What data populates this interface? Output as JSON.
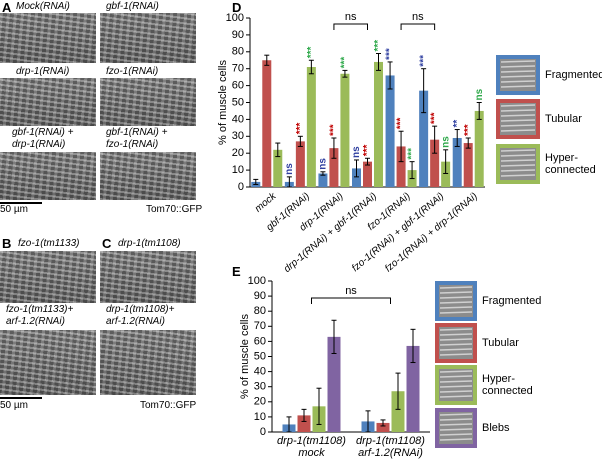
{
  "panels": [
    {
      "letter": "A",
      "captions": [
        "Mock(RNAi)",
        "gbf-1(RNAi)",
        "drp-1(RNAi)",
        "fzo-1(RNAi)",
        "gbf-1(RNAi) +\ndrp-1(RNAi)",
        "gbf-1(RNAi) +\nfzo-1(RNAi)"
      ],
      "scale_bar": "50 µm",
      "marker": "Tom70::GFP"
    },
    {
      "letter": "B",
      "captions": [
        "fzo-1(tm1133)",
        "fzo-1(tm1133)+\narf-1.2(RNAi)"
      ],
      "scale_bar": "50 µm"
    },
    {
      "letter": "C",
      "captions": [
        "drp-1(tm1108)",
        "drp-1(tm1108)+\narf-1.2(RNAi)"
      ],
      "marker": "Tom70::GFP"
    }
  ],
  "chart_data": [
    {
      "type": "bar",
      "label": "D",
      "ylabel": "% of muscle cells",
      "categories": [
        "mock",
        "gbf-1(RNAi)",
        "drp-1(RNAi)",
        "drp-1(RNAi) + gbf-1(RNAi)",
        "fzo-1(RNAi)",
        "fzo-1(RNAi) + gbf-1(RNAi)",
        "fzo-1(RNAi) + drp-1(RNAi)"
      ],
      "series": [
        {
          "name": "Fragmented",
          "color": "#4f81bd",
          "annotation_color": "#2f3fa0",
          "values": [
            3,
            3,
            8,
            11,
            66,
            57,
            29
          ],
          "errors": [
            1.5,
            3,
            1,
            5,
            8,
            13,
            5
          ],
          "annotations": [
            null,
            "ns",
            "ns",
            "ns",
            "***",
            "***",
            "**"
          ]
        },
        {
          "name": "Tubular",
          "color": "#c0504d",
          "annotation_color": "#c00000",
          "values": [
            75,
            27,
            23,
            15,
            24,
            28,
            26
          ],
          "errors": [
            3,
            3,
            6,
            2,
            9,
            8,
            3
          ],
          "annotations": [
            null,
            "***",
            "***",
            "***",
            "***",
            "***",
            "***"
          ]
        },
        {
          "name": "Hyper-connected",
          "color": "#9bbb59",
          "annotation_color": "#2ea84a",
          "values": [
            22,
            71,
            67,
            74,
            10,
            15,
            45
          ],
          "errors": [
            4,
            4,
            2,
            5,
            5,
            7,
            5
          ],
          "annotations": [
            null,
            "***",
            "***",
            "***",
            "***",
            "ns",
            "ns"
          ]
        }
      ],
      "brackets": [
        {
          "from": 2,
          "to": 3,
          "label": "ns"
        },
        {
          "from": 4,
          "to": 5,
          "label": "ns"
        }
      ],
      "ylim": [
        0,
        100
      ],
      "yticks": [
        0,
        10,
        20,
        30,
        40,
        50,
        60,
        70,
        80,
        90,
        100
      ]
    },
    {
      "type": "bar",
      "label": "E",
      "ylabel": "% of muscle cells",
      "categories": [
        "drp-1(tm1108)\nmock",
        "drp-1(tm1108)\narf-1.2(RNAi)"
      ],
      "series": [
        {
          "name": "Fragmented",
          "color": "#4f81bd",
          "values": [
            5,
            7
          ],
          "errors": [
            5,
            7
          ]
        },
        {
          "name": "Tubular",
          "color": "#c0504d",
          "values": [
            11,
            6
          ],
          "errors": [
            4,
            2
          ]
        },
        {
          "name": "Hyper-connected",
          "color": "#9bbb59",
          "values": [
            17,
            27
          ],
          "errors": [
            12,
            12
          ]
        },
        {
          "name": "Blebs",
          "color": "#8064a2",
          "values": [
            63,
            57
          ],
          "errors": [
            11,
            11
          ]
        }
      ],
      "brackets": [
        {
          "from": 0,
          "to": 1,
          "label": "ns"
        }
      ],
      "ylim": [
        0,
        100
      ],
      "yticks": [
        0,
        10,
        20,
        30,
        40,
        50,
        60,
        70,
        80,
        90,
        100
      ]
    }
  ]
}
